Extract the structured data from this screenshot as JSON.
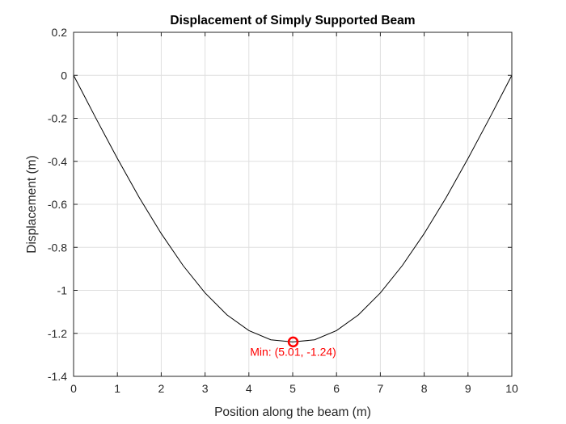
{
  "chart_data": {
    "type": "line",
    "title": "Displacement of Simply Supported Beam",
    "xlabel": "Position along the beam (m)",
    "ylabel": "Displacement (m)",
    "xlim": [
      0,
      10
    ],
    "ylim": [
      -1.4,
      0.2
    ],
    "xticks": [
      0,
      1,
      2,
      3,
      4,
      5,
      6,
      7,
      8,
      9,
      10
    ],
    "xtick_labels": [
      "0",
      "1",
      "2",
      "3",
      "4",
      "5",
      "6",
      "7",
      "8",
      "9",
      "10"
    ],
    "yticks": [
      0.2,
      0,
      -0.2,
      -0.4,
      -0.6,
      -0.8,
      -1,
      -1.2,
      -1.4
    ],
    "ytick_labels": [
      "0.2",
      "0",
      "-0.2",
      "-0.4",
      "-0.6",
      "-0.8",
      "-1",
      "-1.2",
      "-1.4"
    ],
    "grid": true,
    "box": true,
    "series": [
      {
        "color": "#000000",
        "x": [
          0,
          0.5,
          1,
          1.5,
          2,
          2.5,
          3,
          3.5,
          4,
          4.5,
          5,
          5.5,
          6,
          6.5,
          7,
          7.5,
          8,
          8.5,
          9,
          9.5,
          10
        ],
        "values": [
          0,
          -0.196,
          -0.387,
          -0.569,
          -0.736,
          -0.885,
          -1.012,
          -1.114,
          -1.187,
          -1.23,
          -1.24,
          -1.23,
          -1.187,
          -1.114,
          -1.012,
          -0.885,
          -0.736,
          -0.569,
          -0.387,
          -0.196,
          0
        ]
      }
    ],
    "annotations": [
      {
        "marker": "circle",
        "color": "#ff0000",
        "x": 5.01,
        "y": -1.24,
        "text": "Min: (5.01, -1.24)"
      }
    ]
  }
}
